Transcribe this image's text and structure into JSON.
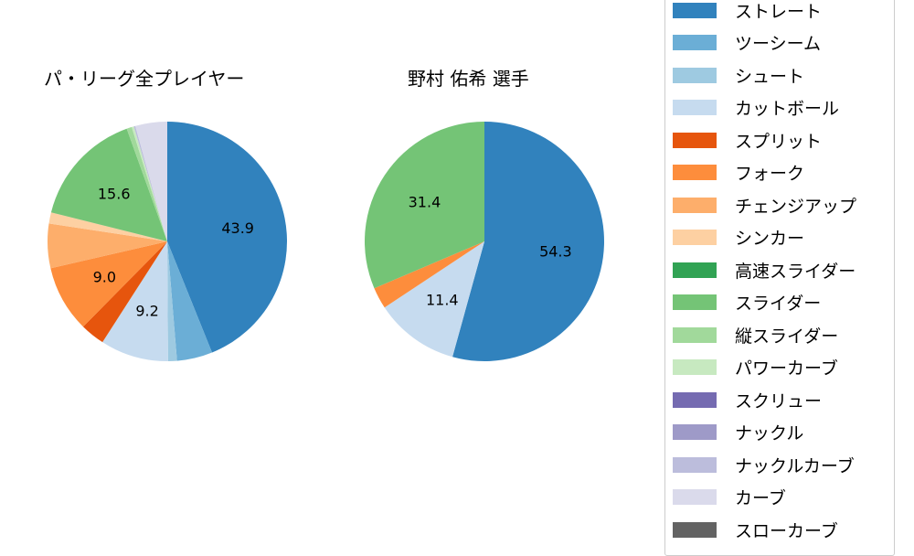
{
  "chart_data": [
    {
      "type": "pie",
      "title": "パ・リーグ全プレイヤー",
      "categories": [
        "ストレート",
        "ツーシーム",
        "シュート",
        "カットボール",
        "スプリット",
        "フォーク",
        "チェンジアップ",
        "シンカー",
        "高速スライダー",
        "スライダー",
        "縦スライダー",
        "パワーカーブ",
        "スクリュー",
        "ナックル",
        "ナックルカーブ",
        "カーブ",
        "スローカーブ"
      ],
      "values": [
        43.9,
        4.8,
        1.2,
        9.2,
        3.3,
        9.0,
        6.0,
        1.5,
        0.0,
        15.6,
        0.7,
        0.3,
        0.0,
        0.0,
        0.2,
        4.3,
        0.0
      ],
      "labels_shown": [
        "43.9",
        "9.2",
        "9.0",
        "15.6"
      ]
    },
    {
      "type": "pie",
      "title": "野村 佑希  選手",
      "categories": [
        "ストレート",
        "ツーシーム",
        "シュート",
        "カットボール",
        "スプリット",
        "フォーク",
        "チェンジアップ",
        "シンカー",
        "高速スライダー",
        "スライダー",
        "縦スライダー",
        "パワーカーブ",
        "スクリュー",
        "ナックル",
        "ナックルカーブ",
        "カーブ",
        "スローカーブ"
      ],
      "values": [
        54.3,
        0,
        0,
        11.4,
        0,
        2.9,
        0,
        0,
        0,
        31.4,
        0,
        0,
        0,
        0,
        0,
        0,
        0
      ],
      "labels_shown": [
        "54.3",
        "11.4",
        "31.4"
      ]
    }
  ],
  "titles": {
    "left": "パ・リーグ全プレイヤー",
    "right": "野村 佑希  選手"
  },
  "legend": [
    {
      "label": "ストレート",
      "color": "#3182bd"
    },
    {
      "label": "ツーシーム",
      "color": "#6baed6"
    },
    {
      "label": "シュート",
      "color": "#9ecae1"
    },
    {
      "label": "カットボール",
      "color": "#c6dbef"
    },
    {
      "label": "スプリット",
      "color": "#e6550d"
    },
    {
      "label": "フォーク",
      "color": "#fd8d3c"
    },
    {
      "label": "チェンジアップ",
      "color": "#fdae6b"
    },
    {
      "label": "シンカー",
      "color": "#fdd0a2"
    },
    {
      "label": "高速スライダー",
      "color": "#31a354"
    },
    {
      "label": "スライダー",
      "color": "#74c476"
    },
    {
      "label": "縦スライダー",
      "color": "#a1d99b"
    },
    {
      "label": "パワーカーブ",
      "color": "#c7e9c0"
    },
    {
      "label": "スクリュー",
      "color": "#756bb1"
    },
    {
      "label": "ナックル",
      "color": "#9e9ac8"
    },
    {
      "label": "ナックルカーブ",
      "color": "#bcbddc"
    },
    {
      "label": "カーブ",
      "color": "#dadaeb"
    },
    {
      "label": "スローカーブ",
      "color": "#636363"
    }
  ]
}
